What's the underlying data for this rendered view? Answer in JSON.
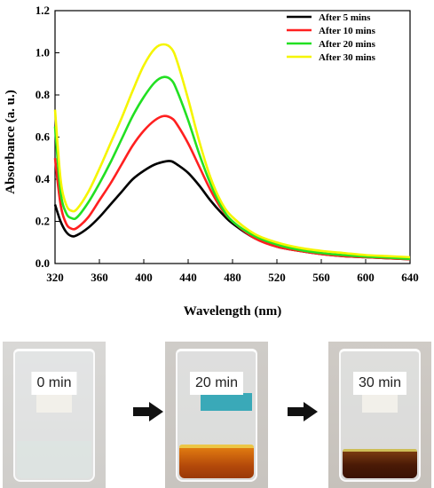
{
  "chart_data": {
    "type": "line",
    "xlabel": "Wavelength (nm)",
    "ylabel": "Absorbance (a. u.)",
    "xlim": [
      320,
      640
    ],
    "ylim": [
      0.0,
      1.2
    ],
    "x_ticks": [
      "320",
      "360",
      "400",
      "440",
      "480",
      "520",
      "560",
      "600",
      "640"
    ],
    "y_ticks": [
      "0.0",
      "0.2",
      "0.4",
      "0.6",
      "0.8",
      "1.0",
      "1.2"
    ],
    "legend_position": "top-right",
    "grid": false,
    "series": [
      {
        "name": "After 5 mins",
        "color": "#000000",
        "x": [
          320,
          325,
          330,
          335,
          340,
          350,
          360,
          370,
          380,
          390,
          400,
          410,
          420,
          425,
          430,
          440,
          450,
          460,
          470,
          480,
          500,
          520,
          540,
          560,
          580,
          600,
          620,
          640
        ],
        "y": [
          0.28,
          0.2,
          0.15,
          0.13,
          0.135,
          0.17,
          0.22,
          0.28,
          0.34,
          0.4,
          0.44,
          0.47,
          0.485,
          0.485,
          0.47,
          0.43,
          0.37,
          0.3,
          0.24,
          0.19,
          0.12,
          0.08,
          0.06,
          0.045,
          0.035,
          0.03,
          0.025,
          0.02
        ]
      },
      {
        "name": "After 10 mins",
        "color": "#ff2020",
        "x": [
          320,
          325,
          330,
          335,
          340,
          350,
          360,
          370,
          380,
          390,
          400,
          410,
          418,
          425,
          430,
          440,
          450,
          460,
          470,
          480,
          500,
          520,
          540,
          560,
          580,
          600,
          620,
          640
        ],
        "y": [
          0.5,
          0.28,
          0.19,
          0.165,
          0.17,
          0.22,
          0.3,
          0.38,
          0.47,
          0.56,
          0.63,
          0.68,
          0.7,
          0.69,
          0.66,
          0.57,
          0.46,
          0.35,
          0.26,
          0.2,
          0.12,
          0.08,
          0.06,
          0.045,
          0.035,
          0.03,
          0.025,
          0.02
        ]
      },
      {
        "name": "After 20 mins",
        "color": "#22e022",
        "x": [
          320,
          325,
          330,
          335,
          340,
          350,
          360,
          370,
          380,
          390,
          400,
          410,
          418,
          425,
          430,
          440,
          450,
          460,
          470,
          480,
          500,
          520,
          540,
          560,
          580,
          600,
          620,
          640
        ],
        "y": [
          0.65,
          0.34,
          0.24,
          0.215,
          0.22,
          0.29,
          0.38,
          0.48,
          0.59,
          0.7,
          0.79,
          0.86,
          0.885,
          0.87,
          0.82,
          0.68,
          0.52,
          0.38,
          0.27,
          0.2,
          0.13,
          0.09,
          0.065,
          0.05,
          0.04,
          0.033,
          0.028,
          0.022
        ]
      },
      {
        "name": "After 30 mins",
        "color": "#f5f500",
        "x": [
          320,
          325,
          330,
          335,
          340,
          350,
          360,
          370,
          380,
          390,
          400,
          410,
          418,
          425,
          430,
          440,
          450,
          460,
          470,
          480,
          500,
          520,
          540,
          560,
          580,
          600,
          620,
          640
        ],
        "y": [
          0.73,
          0.4,
          0.28,
          0.25,
          0.26,
          0.34,
          0.45,
          0.57,
          0.69,
          0.82,
          0.94,
          1.02,
          1.04,
          1.02,
          0.96,
          0.78,
          0.58,
          0.41,
          0.29,
          0.22,
          0.14,
          0.1,
          0.075,
          0.06,
          0.05,
          0.04,
          0.035,
          0.03
        ]
      }
    ]
  },
  "photos": [
    {
      "time_label": "0 min"
    },
    {
      "time_label": "20 min"
    },
    {
      "time_label": "30 min"
    }
  ],
  "icons": {
    "arrow": "right-arrow-icon"
  }
}
